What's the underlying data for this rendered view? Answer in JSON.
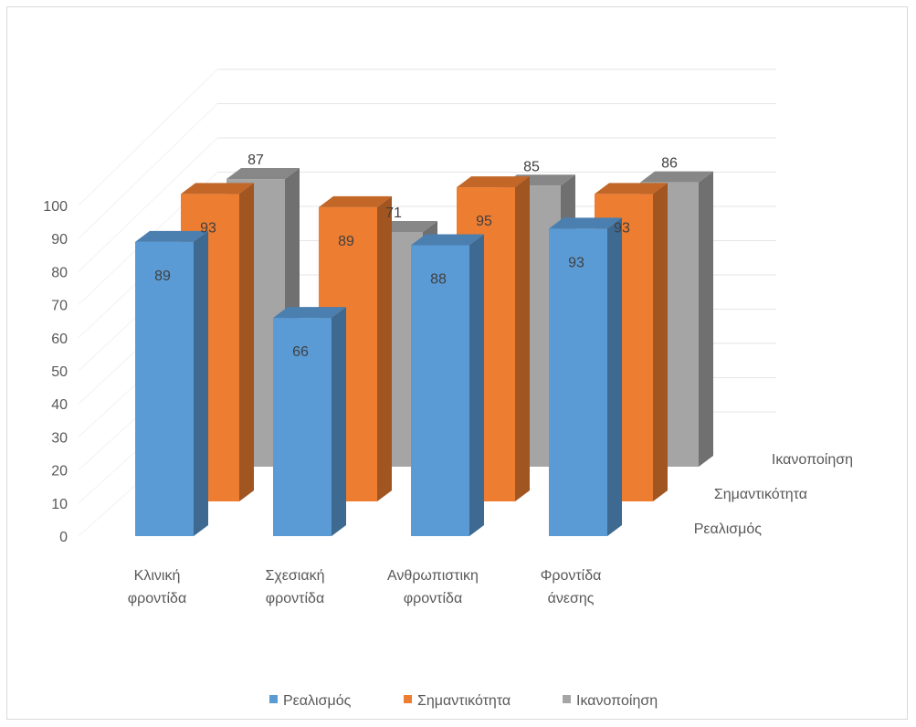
{
  "chart_data": {
    "type": "bar",
    "subtype": "3d-column",
    "categories": [
      [
        "Κλινική",
        "φροντίδα"
      ],
      [
        "Σχεσιακή",
        "φροντίδα"
      ],
      [
        "Ανθρωπιστικη",
        "φροντίδα"
      ],
      [
        "Φροντίδα",
        "άνεσης"
      ]
    ],
    "series": [
      {
        "name": "Ρεαλισμός",
        "values": [
          89,
          66,
          88,
          93
        ],
        "color": "#5b9bd5"
      },
      {
        "name": "Σημαντικότητα",
        "values": [
          93,
          89,
          95,
          93
        ],
        "color": "#ed7d31"
      },
      {
        "name": "Ικανοποίηση",
        "values": [
          87,
          71,
          85,
          86
        ],
        "color": "#a5a5a5"
      }
    ],
    "y_ticks": [
      0,
      10,
      20,
      30,
      40,
      50,
      60,
      70,
      80,
      90,
      100
    ],
    "ylim": [
      0,
      100
    ],
    "grid": true,
    "data_labels": true,
    "legend_position": "bottom"
  }
}
